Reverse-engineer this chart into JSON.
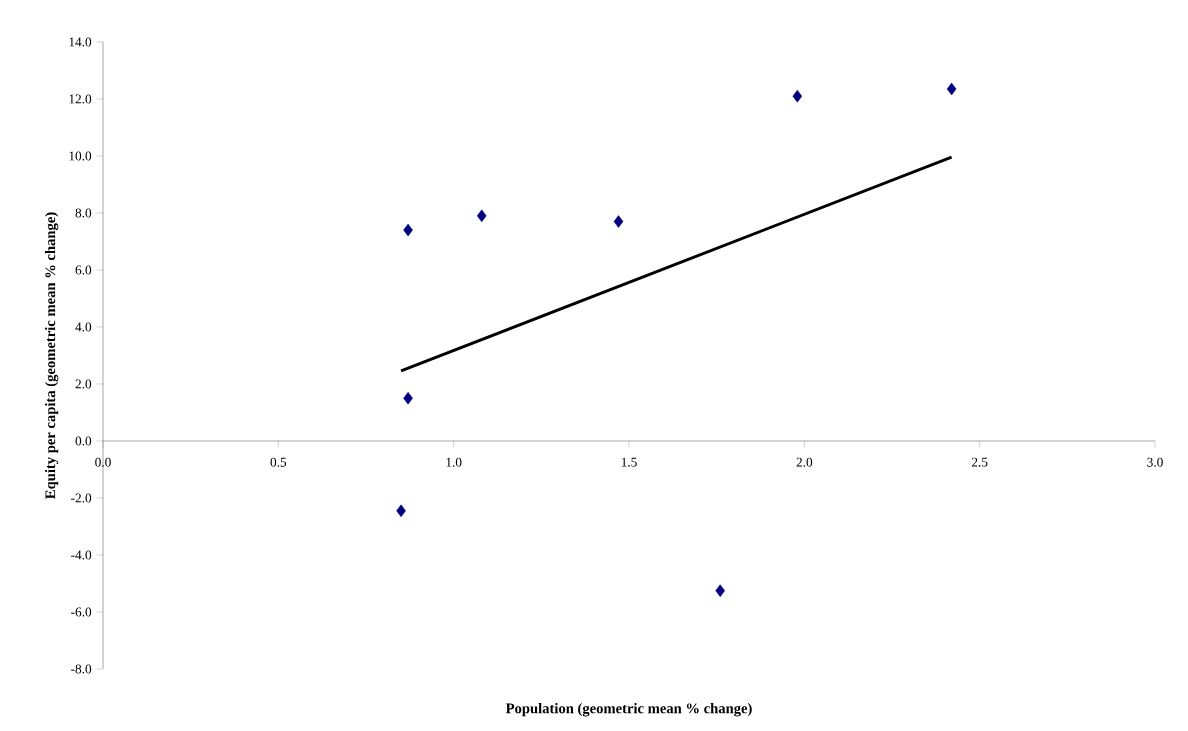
{
  "chart_data": {
    "type": "scatter",
    "xlabel": "Population (geometric mean % change)",
    "ylabel": "Equity per capita (geometric mean % change)",
    "grid": false,
    "xlim": [
      0,
      3
    ],
    "ylim": [
      -8,
      14
    ],
    "xticks": [
      {
        "value": 0,
        "label": "0.0"
      },
      {
        "value": 0.5,
        "label": "0.5"
      },
      {
        "value": 1,
        "label": "1.0"
      },
      {
        "value": 1.5,
        "label": "1.5"
      },
      {
        "value": 2,
        "label": "2.0"
      },
      {
        "value": 2.5,
        "label": "2.5"
      },
      {
        "value": 3,
        "label": "3.0"
      }
    ],
    "yticks": [
      {
        "value": -8,
        "label": "-8.0"
      },
      {
        "value": -6,
        "label": "-6.0"
      },
      {
        "value": -4,
        "label": "-4.0"
      },
      {
        "value": -2,
        "label": "-2.0"
      },
      {
        "value": 0,
        "label": "0.0"
      },
      {
        "value": 2,
        "label": "2.0"
      },
      {
        "value": 4,
        "label": "4.0"
      },
      {
        "value": 6,
        "label": "6.0"
      },
      {
        "value": 8,
        "label": "8.0"
      },
      {
        "value": 10,
        "label": "10.0"
      },
      {
        "value": 12,
        "label": "12.0"
      },
      {
        "value": 14,
        "label": "14.0"
      }
    ],
    "series": [
      {
        "color": "#000080",
        "marker": "diamond",
        "x": [
          0.87,
          1.08,
          1.47,
          1.98,
          2.42,
          0.87,
          0.85,
          1.76
        ],
        "values": [
          7.4,
          7.9,
          7.7,
          12.1,
          12.35,
          1.5,
          -2.45,
          -5.25
        ]
      },
      {
        "type": "line",
        "color": "#000000",
        "x": [
          0.85,
          2.42
        ],
        "values": [
          2.46,
          9.96
        ]
      }
    ]
  }
}
